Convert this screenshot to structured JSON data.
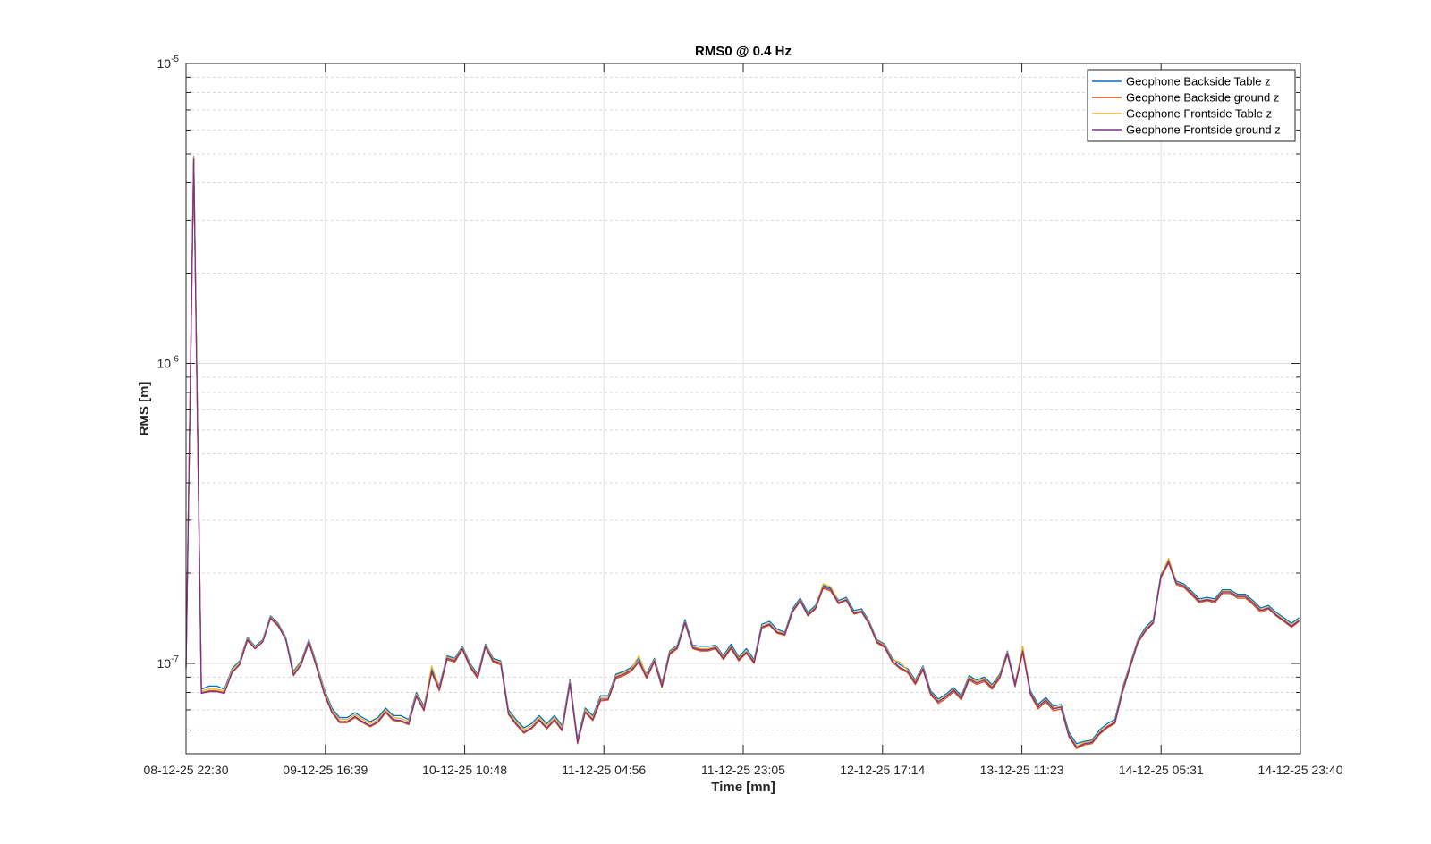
{
  "chart_data": {
    "type": "line",
    "title": "RMS0 @ 0.4 Hz",
    "xlabel": "Time [mn]",
    "ylabel": "RMS [m]",
    "yscale": "log",
    "ylim": [
      5e-08,
      1e-05
    ],
    "grid": true,
    "minor_grid": true,
    "legend_position": "top-right",
    "x_start": "08-12-25 22:30",
    "x_end": "14-12-25 23:40",
    "x_ticks": [
      "08-12-25 22:30",
      "09-12-25 16:39",
      "10-12-25 10:48",
      "11-12-25 04:56",
      "11-12-25 23:05",
      "12-12-25 17:14",
      "13-12-25 11:23",
      "14-12-25 05:31",
      "14-12-25 23:40"
    ],
    "y_ticks": [
      {
        "base": "10",
        "exp": "-7",
        "value": 1e-07
      },
      {
        "base": "10",
        "exp": "-6",
        "value": 1e-06
      },
      {
        "base": "10",
        "exp": "-5",
        "value": 1e-05
      }
    ],
    "x": [
      "08-12-25 22:30",
      "08-12-25 23:30",
      "09-12-25 00:30",
      "09-12-25 01:30",
      "09-12-25 02:30",
      "09-12-25 03:30",
      "09-12-25 04:30",
      "09-12-25 05:30",
      "09-12-25 06:30",
      "09-12-25 07:30",
      "09-12-25 08:30",
      "09-12-25 09:30",
      "09-12-25 10:30",
      "09-12-25 11:30",
      "09-12-25 12:30",
      "09-12-25 13:30",
      "09-12-25 14:30",
      "09-12-25 15:30",
      "09-12-25 16:30",
      "09-12-25 17:30",
      "09-12-25 18:30",
      "09-12-25 19:30",
      "09-12-25 20:30",
      "09-12-25 21:30",
      "09-12-25 22:30",
      "09-12-25 23:30",
      "10-12-25 00:30",
      "10-12-25 01:30",
      "10-12-25 02:30",
      "10-12-25 03:30",
      "10-12-25 04:30",
      "10-12-25 05:30",
      "10-12-25 06:30",
      "10-12-25 07:30",
      "10-12-25 08:30",
      "10-12-25 09:30",
      "10-12-25 10:30",
      "10-12-25 11:30",
      "10-12-25 12:30",
      "10-12-25 13:30",
      "10-12-25 14:30",
      "10-12-25 15:30",
      "10-12-25 16:30",
      "10-12-25 17:30",
      "10-12-25 18:30",
      "10-12-25 19:30",
      "10-12-25 20:30",
      "10-12-25 21:30",
      "10-12-25 22:30",
      "10-12-25 23:30",
      "11-12-25 00:30",
      "11-12-25 01:30",
      "11-12-25 02:30",
      "11-12-25 03:30",
      "11-12-25 04:30",
      "11-12-25 05:30",
      "11-12-25 06:30",
      "11-12-25 07:30",
      "11-12-25 08:30",
      "11-12-25 09:30",
      "11-12-25 10:30",
      "11-12-25 11:30",
      "11-12-25 12:30",
      "11-12-25 13:30",
      "11-12-25 14:30",
      "11-12-25 15:30",
      "11-12-25 16:30",
      "11-12-25 17:30",
      "11-12-25 18:30",
      "11-12-25 19:30",
      "11-12-25 20:30",
      "11-12-25 21:30",
      "11-12-25 22:30",
      "11-12-25 23:30",
      "12-12-25 00:30",
      "12-12-25 01:30",
      "12-12-25 02:30",
      "12-12-25 03:30",
      "12-12-25 04:30",
      "12-12-25 05:30",
      "12-12-25 06:30",
      "12-12-25 07:30",
      "12-12-25 08:30",
      "12-12-25 09:30",
      "12-12-25 10:30",
      "12-12-25 11:30",
      "12-12-25 12:30",
      "12-12-25 13:30",
      "12-12-25 14:30",
      "12-12-25 15:30",
      "12-12-25 16:30",
      "12-12-25 17:30",
      "12-12-25 18:30",
      "12-12-25 19:30",
      "12-12-25 20:30",
      "12-12-25 21:30",
      "12-12-25 22:30",
      "12-12-25 23:30",
      "13-12-25 00:30",
      "13-12-25 01:30",
      "13-12-25 02:30",
      "13-12-25 03:30",
      "13-12-25 04:30",
      "13-12-25 05:30",
      "13-12-25 06:30",
      "13-12-25 07:30",
      "13-12-25 08:30",
      "13-12-25 09:30",
      "13-12-25 10:30",
      "13-12-25 11:30",
      "13-12-25 12:30",
      "13-12-25 13:30",
      "13-12-25 14:30",
      "13-12-25 15:30",
      "13-12-25 16:30",
      "13-12-25 17:30",
      "13-12-25 18:30",
      "13-12-25 19:30",
      "13-12-25 20:30",
      "13-12-25 21:30",
      "13-12-25 22:30",
      "13-12-25 23:30",
      "14-12-25 00:30",
      "14-12-25 01:30",
      "14-12-25 02:30",
      "14-12-25 03:30",
      "14-12-25 04:30",
      "14-12-25 05:30",
      "14-12-25 06:30",
      "14-12-25 07:30",
      "14-12-25 08:30",
      "14-12-25 09:30",
      "14-12-25 10:30",
      "14-12-25 11:30",
      "14-12-25 12:30",
      "14-12-25 13:30",
      "14-12-25 14:30",
      "14-12-25 15:30",
      "14-12-25 16:30",
      "14-12-25 17:30",
      "14-12-25 18:30",
      "14-12-25 19:30",
      "14-12-25 20:30",
      "14-12-25 21:30",
      "14-12-25 22:30",
      "14-12-25 23:30"
    ],
    "series": [
      {
        "name": "Geophone Backside Table z",
        "color": "#0072BD",
        "values": [
          1e-07,
          4.9e-06,
          8.2e-08,
          8.4e-08,
          8.4e-08,
          8.2e-08,
          9.6e-08,
          1.02e-07,
          1.22e-07,
          1.14e-07,
          1.2e-07,
          1.44e-07,
          1.36e-07,
          1.22e-07,
          9.4e-08,
          1.02e-07,
          1.2e-07,
          1e-07,
          8.2e-08,
          7.1e-08,
          6.6e-08,
          6.6e-08,
          6.85e-08,
          6.6e-08,
          6.4e-08,
          6.6e-08,
          7.1e-08,
          6.7e-08,
          6.7e-08,
          6.5e-08,
          8e-08,
          7.2e-08,
          9.6e-08,
          8.4e-08,
          1.06e-07,
          1.04e-07,
          1.14e-07,
          1e-07,
          9.2e-08,
          1.16e-07,
          1.04e-07,
          1.02e-07,
          7e-08,
          6.5e-08,
          6.1e-08,
          6.3e-08,
          6.7e-08,
          6.3e-08,
          6.7e-08,
          6.2e-08,
          8.8e-08,
          5.6e-08,
          7.1e-08,
          6.7e-08,
          7.8e-08,
          7.8e-08,
          9.2e-08,
          9.4e-08,
          9.7e-08,
          1.04e-07,
          9.2e-08,
          1.04e-07,
          8.6e-08,
          1.1e-07,
          1.15e-07,
          1.4e-07,
          1.15e-07,
          1.14e-07,
          1.14e-07,
          1.15e-07,
          1.06e-07,
          1.16e-07,
          1.05e-07,
          1.12e-07,
          1.03e-07,
          1.35e-07,
          1.38e-07,
          1.3e-07,
          1.27e-07,
          1.52e-07,
          1.65e-07,
          1.48e-07,
          1.56e-07,
          1.82e-07,
          1.78e-07,
          1.62e-07,
          1.66e-07,
          1.5e-07,
          1.52e-07,
          1.38e-07,
          1.2e-07,
          1.16e-07,
          1.04e-07,
          9.9e-08,
          9.6e-08,
          8.8e-08,
          9.8e-08,
          8.1e-08,
          7.6e-08,
          7.9e-08,
          8.3e-08,
          7.8e-08,
          9.1e-08,
          8.8e-08,
          9e-08,
          8.5e-08,
          9.2e-08,
          1.1e-07,
          8.6e-08,
          1.12e-07,
          8.1e-08,
          7.3e-08,
          7.7e-08,
          7.2e-08,
          7.3e-08,
          5.9e-08,
          5.4e-08,
          5.5e-08,
          5.55e-08,
          6e-08,
          6.3e-08,
          6.5e-08,
          8.3e-08,
          1e-07,
          1.2e-07,
          1.32e-07,
          1.4e-07,
          1.98e-07,
          2.2e-07,
          1.88e-07,
          1.84e-07,
          1.74e-07,
          1.64e-07,
          1.66e-07,
          1.64e-07,
          1.76e-07,
          1.76e-07,
          1.7e-07,
          1.7e-07,
          1.62e-07,
          1.53e-07,
          1.56e-07,
          1.48e-07,
          1.42e-07,
          1.36e-07,
          1.42e-07
        ]
      },
      {
        "name": "Geophone Backside ground z",
        "color": "#D95319",
        "values": [
          9.7e-08,
          4.85e-06,
          8e-08,
          8.1e-08,
          8.1e-08,
          8e-08,
          9.3e-08,
          9.9e-08,
          1.19e-07,
          1.12e-07,
          1.18e-07,
          1.41e-07,
          1.33e-07,
          1.2e-07,
          9.1e-08,
          9.9e-08,
          1.17e-07,
          9.7e-08,
          7.9e-08,
          6.85e-08,
          6.35e-08,
          6.35e-08,
          6.6e-08,
          6.35e-08,
          6.15e-08,
          6.35e-08,
          6.85e-08,
          6.45e-08,
          6.4e-08,
          6.25e-08,
          7.75e-08,
          6.95e-08,
          9.3e-08,
          8.1e-08,
          1.03e-07,
          1.01e-07,
          1.11e-07,
          9.7e-08,
          8.9e-08,
          1.13e-07,
          1.01e-07,
          9.9e-08,
          6.75e-08,
          6.25e-08,
          5.85e-08,
          6.05e-08,
          6.45e-08,
          6.05e-08,
          6.45e-08,
          5.95e-08,
          8.5e-08,
          5.4e-08,
          6.85e-08,
          6.45e-08,
          7.5e-08,
          7.55e-08,
          8.9e-08,
          9.1e-08,
          9.4e-08,
          1.01e-07,
          8.9e-08,
          1.01e-07,
          8.3e-08,
          1.07e-07,
          1.12e-07,
          1.36e-07,
          1.12e-07,
          1.1e-07,
          1.1e-07,
          1.12e-07,
          1.03e-07,
          1.12e-07,
          1.02e-07,
          1.08e-07,
          1e-07,
          1.31e-07,
          1.34e-07,
          1.26e-07,
          1.24e-07,
          1.48e-07,
          1.61e-07,
          1.44e-07,
          1.52e-07,
          1.78e-07,
          1.74e-07,
          1.58e-07,
          1.62e-07,
          1.46e-07,
          1.48e-07,
          1.35e-07,
          1.17e-07,
          1.13e-07,
          1.01e-07,
          9.6e-08,
          9.3e-08,
          8.5e-08,
          9.5e-08,
          7.85e-08,
          7.35e-08,
          7.65e-08,
          8.05e-08,
          7.55e-08,
          8.8e-08,
          8.5e-08,
          8.7e-08,
          8.2e-08,
          8.9e-08,
          1.07e-07,
          8.35e-08,
          1.09e-07,
          7.85e-08,
          7.05e-08,
          7.45e-08,
          6.95e-08,
          7.05e-08,
          5.7e-08,
          5.2e-08,
          5.35e-08,
          5.4e-08,
          5.8e-08,
          6.1e-08,
          6.3e-08,
          8e-08,
          9.7e-08,
          1.17e-07,
          1.28e-07,
          1.36e-07,
          1.93e-07,
          2.16e-07,
          1.83e-07,
          1.79e-07,
          1.69e-07,
          1.59e-07,
          1.62e-07,
          1.59e-07,
          1.71e-07,
          1.71e-07,
          1.65e-07,
          1.65e-07,
          1.57e-07,
          1.48e-07,
          1.52e-07,
          1.44e-07,
          1.38e-07,
          1.32e-07,
          1.38e-07
        ]
      },
      {
        "name": "Geophone Frontside Table z",
        "color": "#EDB120",
        "values": [
          9.8e-08,
          4.88e-06,
          8.1e-08,
          8.2e-08,
          8.2e-08,
          8.1e-08,
          9.5e-08,
          1.01e-07,
          1.21e-07,
          1.13e-07,
          1.19e-07,
          1.43e-07,
          1.35e-07,
          1.21e-07,
          9.3e-08,
          1.01e-07,
          1.19e-07,
          9.9e-08,
          8.1e-08,
          7e-08,
          6.5e-08,
          6.5e-08,
          6.75e-08,
          6.5e-08,
          6.3e-08,
          6.5e-08,
          7e-08,
          6.6e-08,
          6.55e-08,
          6.4e-08,
          7.9e-08,
          7.1e-08,
          9.8e-08,
          8.3e-08,
          1.05e-07,
          1.03e-07,
          1.13e-07,
          9.9e-08,
          9.1e-08,
          1.15e-07,
          1.03e-07,
          1.01e-07,
          6.9e-08,
          6.4e-08,
          6e-08,
          6.2e-08,
          6.6e-08,
          6.2e-08,
          6.6e-08,
          6.1e-08,
          8.7e-08,
          5.5e-08,
          7e-08,
          6.6e-08,
          7.7e-08,
          7.7e-08,
          9.1e-08,
          9.3e-08,
          9.6e-08,
          1.06e-07,
          9.1e-08,
          1.03e-07,
          8.5e-08,
          1.09e-07,
          1.14e-07,
          1.38e-07,
          1.14e-07,
          1.12e-07,
          1.12e-07,
          1.14e-07,
          1.05e-07,
          1.14e-07,
          1.04e-07,
          1.1e-07,
          1.02e-07,
          1.33e-07,
          1.36e-07,
          1.28e-07,
          1.26e-07,
          1.5e-07,
          1.63e-07,
          1.46e-07,
          1.54e-07,
          1.84e-07,
          1.8e-07,
          1.6e-07,
          1.64e-07,
          1.48e-07,
          1.5e-07,
          1.37e-07,
          1.19e-07,
          1.15e-07,
          1.03e-07,
          1.01e-07,
          9.5e-08,
          8.7e-08,
          9.7e-08,
          8e-08,
          7.5e-08,
          7.8e-08,
          8.2e-08,
          7.7e-08,
          9e-08,
          8.7e-08,
          8.9e-08,
          8.4e-08,
          9.1e-08,
          1.09e-07,
          8.5e-08,
          1.14e-07,
          8e-08,
          7.2e-08,
          7.6e-08,
          7.1e-08,
          7.2e-08,
          5.8e-08,
          5.3e-08,
          5.45e-08,
          5.5e-08,
          5.9e-08,
          6.2e-08,
          6.4e-08,
          8.2e-08,
          9.9e-08,
          1.19e-07,
          1.3e-07,
          1.38e-07,
          1.96e-07,
          2.24e-07,
          1.86e-07,
          1.82e-07,
          1.72e-07,
          1.62e-07,
          1.64e-07,
          1.62e-07,
          1.74e-07,
          1.74e-07,
          1.68e-07,
          1.68e-07,
          1.6e-07,
          1.51e-07,
          1.54e-07,
          1.46e-07,
          1.4e-07,
          1.34e-07,
          1.4e-07
        ]
      },
      {
        "name": "Geophone Frontside ground z",
        "color": "#7E2F8E",
        "values": [
          9.6e-08,
          4.8e-06,
          7.95e-08,
          8.05e-08,
          8.05e-08,
          7.95e-08,
          9.35e-08,
          9.95e-08,
          1.2e-07,
          1.12e-07,
          1.18e-07,
          1.42e-07,
          1.34e-07,
          1.2e-07,
          9.15e-08,
          9.95e-08,
          1.18e-07,
          9.75e-08,
          7.95e-08,
          6.9e-08,
          6.4e-08,
          6.4e-08,
          6.65e-08,
          6.4e-08,
          6.2e-08,
          6.4e-08,
          6.9e-08,
          6.5e-08,
          6.45e-08,
          6.3e-08,
          7.8e-08,
          7e-08,
          9.4e-08,
          8.2e-08,
          1.04e-07,
          1.02e-07,
          1.12e-07,
          9.8e-08,
          9e-08,
          1.14e-07,
          1.02e-07,
          1e-07,
          6.8e-08,
          6.3e-08,
          5.9e-08,
          6.1e-08,
          6.5e-08,
          6.1e-08,
          6.5e-08,
          6e-08,
          8.6e-08,
          5.45e-08,
          6.9e-08,
          6.5e-08,
          7.6e-08,
          7.6e-08,
          9e-08,
          9.2e-08,
          9.5e-08,
          1.02e-07,
          9e-08,
          1.02e-07,
          8.4e-08,
          1.08e-07,
          1.13e-07,
          1.37e-07,
          1.13e-07,
          1.11e-07,
          1.11e-07,
          1.13e-07,
          1.04e-07,
          1.13e-07,
          1.03e-07,
          1.09e-07,
          1.01e-07,
          1.32e-07,
          1.35e-07,
          1.27e-07,
          1.25e-07,
          1.49e-07,
          1.62e-07,
          1.45e-07,
          1.53e-07,
          1.8e-07,
          1.76e-07,
          1.59e-07,
          1.63e-07,
          1.47e-07,
          1.49e-07,
          1.36e-07,
          1.18e-07,
          1.14e-07,
          1.02e-07,
          9.7e-08,
          9.4e-08,
          8.6e-08,
          9.6e-08,
          7.95e-08,
          7.45e-08,
          7.75e-08,
          8.15e-08,
          7.65e-08,
          8.9e-08,
          8.6e-08,
          8.8e-08,
          8.3e-08,
          9e-08,
          1.08e-07,
          8.45e-08,
          1.1e-07,
          7.95e-08,
          7.15e-08,
          7.55e-08,
          7.05e-08,
          7.15e-08,
          5.75e-08,
          5.25e-08,
          5.4e-08,
          5.45e-08,
          5.85e-08,
          6.15e-08,
          6.35e-08,
          8.1e-08,
          9.8e-08,
          1.18e-07,
          1.29e-07,
          1.37e-07,
          1.95e-07,
          2.18e-07,
          1.85e-07,
          1.81e-07,
          1.71e-07,
          1.61e-07,
          1.63e-07,
          1.61e-07,
          1.73e-07,
          1.73e-07,
          1.67e-07,
          1.67e-07,
          1.59e-07,
          1.5e-07,
          1.53e-07,
          1.45e-07,
          1.39e-07,
          1.33e-07,
          1.39e-07
        ]
      }
    ]
  }
}
